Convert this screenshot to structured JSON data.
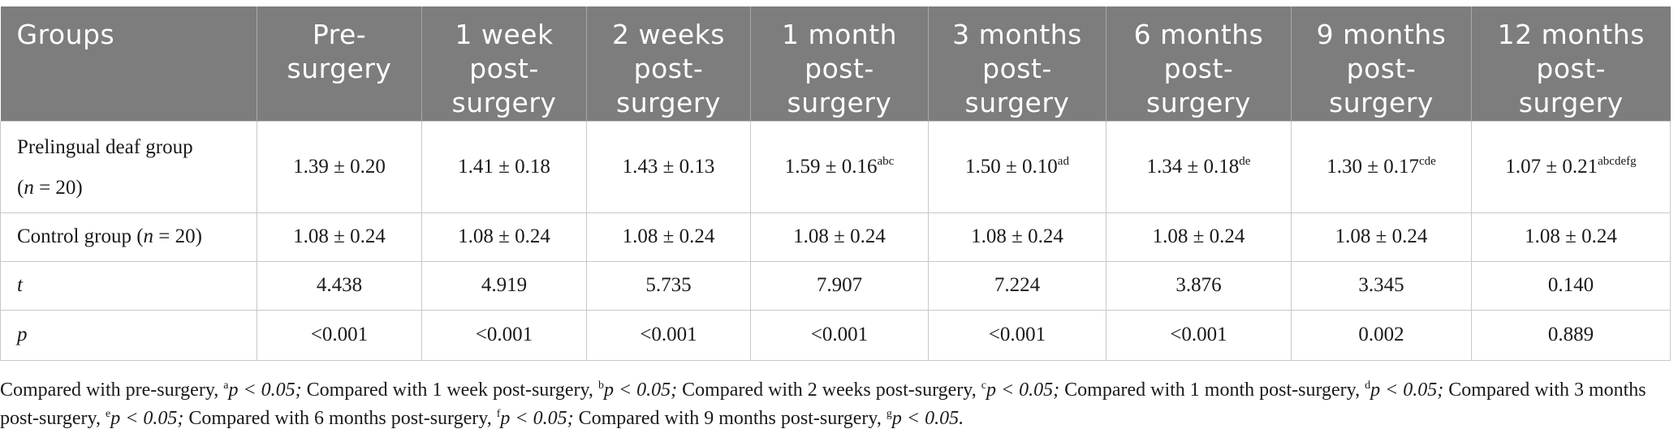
{
  "table": {
    "columns": [
      "Groups",
      "Pre-\nsurgery",
      "1 week\npost-\nsurgery",
      "2 weeks\npost-\nsurgery",
      "1 month\npost-\nsurgery",
      "3 months\npost-\nsurgery",
      "6 months\npost-\nsurgery",
      "9 months\npost-\nsurgery",
      "12 months\npost-\nsurgery"
    ],
    "rows": [
      {
        "label": "Prelingual deaf group",
        "n_prefix": "(",
        "n_var": "n",
        "n_suffix": " = 20)",
        "cells": [
          {
            "v": "1.39 ± 0.20",
            "sup": ""
          },
          {
            "v": "1.41 ± 0.18",
            "sup": ""
          },
          {
            "v": "1.43 ± 0.13",
            "sup": ""
          },
          {
            "v": "1.59 ± 0.16",
            "sup": "abc"
          },
          {
            "v": "1.50 ± 0.10",
            "sup": "ad"
          },
          {
            "v": "1.34 ± 0.18",
            "sup": "de"
          },
          {
            "v": "1.30 ± 0.17",
            "sup": "cde"
          },
          {
            "v": "1.07 ± 0.21",
            "sup": "abcdefg"
          }
        ]
      },
      {
        "label": "Control group (",
        "n_var": "n",
        "n_suffix": " = 20)",
        "cells": [
          {
            "v": "1.08 ± 0.24"
          },
          {
            "v": "1.08 ± 0.24"
          },
          {
            "v": "1.08 ± 0.24"
          },
          {
            "v": "1.08 ± 0.24"
          },
          {
            "v": "1.08 ± 0.24"
          },
          {
            "v": "1.08 ± 0.24"
          },
          {
            "v": "1.08 ± 0.24"
          },
          {
            "v": "1.08 ± 0.24"
          }
        ]
      },
      {
        "label": "t",
        "cells": [
          "4.438",
          "4.919",
          "5.735",
          "7.907",
          "7.224",
          "3.876",
          "3.345",
          "0.140"
        ]
      },
      {
        "label": "p",
        "cells": [
          "<0.001",
          "<0.001",
          "<0.001",
          "<0.001",
          "<0.001",
          "<0.001",
          "0.002",
          "0.889"
        ]
      }
    ]
  },
  "footnote": [
    {
      "text": "Compared with pre-surgery, ",
      "sup": "a",
      "p": "p < 0.05; "
    },
    {
      "text": "Compared with 1 week post-surgery, ",
      "sup": "b",
      "p": "p < 0.05; "
    },
    {
      "text": "Compared with 2 weeks post-surgery, ",
      "sup": "c",
      "p": "p < 0.05; "
    },
    {
      "text": "Compared with 1 month post-surgery, ",
      "sup": "d",
      "p": "p < 0.05; "
    },
    {
      "text": "Compared with 3 months post-surgery, ",
      "sup": "e",
      "p": "p < 0.05; "
    },
    {
      "text": "Compared with 6 months post-surgery, ",
      "sup": "f",
      "p": "p < 0.05; "
    },
    {
      "text": "Compared with 9 months post-surgery, ",
      "sup": "g",
      "p": "p < 0.05."
    }
  ]
}
